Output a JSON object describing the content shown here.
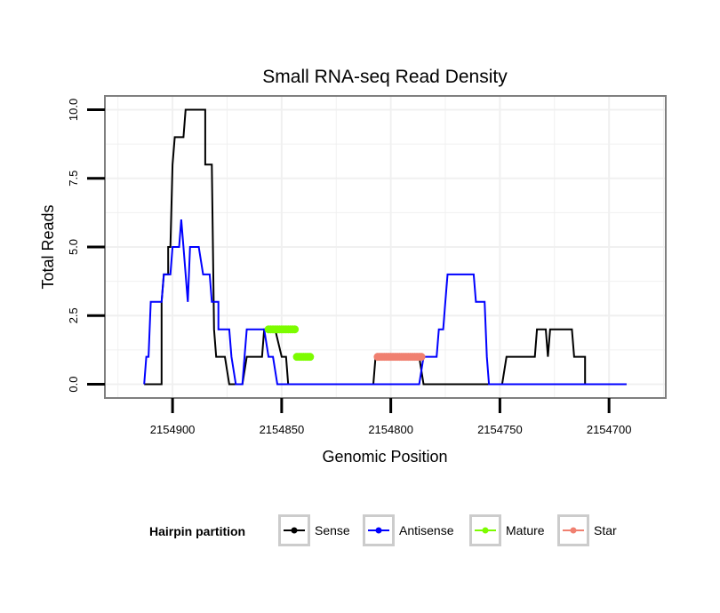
{
  "chart_data": {
    "type": "line",
    "title": "Small RNA-seq Read Density",
    "xlabel": "Genomic Position",
    "ylabel": "Total Reads",
    "x_reversed": true,
    "xlim": [
      2154931,
      2154674
    ],
    "ylim": [
      -0.5,
      10.5
    ],
    "x_ticks": [
      2154900,
      2154850,
      2154800,
      2154750,
      2154700
    ],
    "x_tick_labels": [
      "2154900",
      "2154850",
      "2154800",
      "2154750",
      "2154700"
    ],
    "y_ticks": [
      0,
      2.5,
      5,
      7.5,
      10
    ],
    "y_tick_labels": [
      "0.0",
      "2.5",
      "5.0",
      "7.5",
      "10.0"
    ],
    "grid": true,
    "legend": {
      "title": "Hairpin partition",
      "position": "bottom",
      "entries": [
        {
          "label": "Sense",
          "color": "#000000"
        },
        {
          "label": "Antisense",
          "color": "#0000ff"
        },
        {
          "label": "Mature",
          "color": "#7cfc00"
        },
        {
          "label": "Star",
          "color": "#f08070"
        }
      ]
    },
    "series": [
      {
        "name": "Sense",
        "color": "#000000",
        "points": [
          [
            2154913,
            0
          ],
          [
            2154905,
            0
          ],
          [
            2154905,
            3
          ],
          [
            2154904,
            4
          ],
          [
            2154902,
            4
          ],
          [
            2154902,
            5
          ],
          [
            2154901,
            5
          ],
          [
            2154900,
            8
          ],
          [
            2154899,
            9
          ],
          [
            2154895,
            9
          ],
          [
            2154894,
            10
          ],
          [
            2154885,
            10
          ],
          [
            2154885,
            8
          ],
          [
            2154882,
            8
          ],
          [
            2154881,
            2
          ],
          [
            2154880,
            1
          ],
          [
            2154876,
            1
          ],
          [
            2154874,
            0
          ],
          [
            2154868,
            0
          ],
          [
            2154866,
            1
          ],
          [
            2154859,
            1
          ],
          [
            2154858,
            2
          ],
          [
            2154853,
            2
          ],
          [
            2154850,
            1
          ],
          [
            2154848,
            1
          ],
          [
            2154847,
            0
          ],
          [
            2154808,
            0
          ],
          [
            2154807,
            1
          ],
          [
            2154787,
            1
          ],
          [
            2154785,
            0
          ],
          [
            2154749,
            0
          ],
          [
            2154747,
            1
          ],
          [
            2154734,
            1
          ],
          [
            2154733,
            2
          ],
          [
            2154729,
            2
          ],
          [
            2154728,
            1
          ],
          [
            2154727,
            2
          ],
          [
            2154717,
            2
          ],
          [
            2154716,
            1
          ],
          [
            2154711,
            1
          ],
          [
            2154711,
            0
          ],
          [
            2154692,
            0
          ]
        ]
      },
      {
        "name": "Antisense",
        "color": "#0000ff",
        "points": [
          [
            2154913,
            0
          ],
          [
            2154912,
            1
          ],
          [
            2154911,
            1
          ],
          [
            2154910,
            3
          ],
          [
            2154905,
            3
          ],
          [
            2154904,
            4
          ],
          [
            2154901,
            4
          ],
          [
            2154900,
            5
          ],
          [
            2154897,
            5
          ],
          [
            2154896,
            6
          ],
          [
            2154895,
            5
          ],
          [
            2154893,
            3
          ],
          [
            2154892,
            5
          ],
          [
            2154888,
            5
          ],
          [
            2154886,
            4
          ],
          [
            2154883,
            4
          ],
          [
            2154882,
            3
          ],
          [
            2154879,
            3
          ],
          [
            2154879,
            2
          ],
          [
            2154874,
            2
          ],
          [
            2154873,
            1
          ],
          [
            2154871,
            0
          ],
          [
            2154868,
            0
          ],
          [
            2154867,
            1
          ],
          [
            2154866,
            2
          ],
          [
            2154858,
            2
          ],
          [
            2154856,
            1
          ],
          [
            2154854,
            1
          ],
          [
            2154852,
            0
          ],
          [
            2154787,
            0
          ],
          [
            2154785,
            1
          ],
          [
            2154779,
            1
          ],
          [
            2154778,
            2
          ],
          [
            2154776,
            2
          ],
          [
            2154775,
            3
          ],
          [
            2154774,
            4
          ],
          [
            2154762,
            4
          ],
          [
            2154761,
            3
          ],
          [
            2154757,
            3
          ],
          [
            2154756,
            1
          ],
          [
            2154755,
            0
          ],
          [
            2154692,
            0
          ]
        ]
      },
      {
        "name": "Mature",
        "color": "#7cfc00",
        "points": [
          [
            2154856,
            2
          ],
          [
            2154855,
            2
          ],
          [
            2154854,
            2
          ],
          [
            2154853,
            2
          ],
          [
            2154852,
            2
          ],
          [
            2154851,
            2
          ],
          [
            2154850,
            2
          ],
          [
            2154849,
            2
          ],
          [
            2154848,
            2
          ],
          [
            2154847,
            2
          ],
          [
            2154846,
            2
          ],
          [
            2154845,
            2
          ],
          [
            2154844,
            2
          ],
          [
            2154843,
            1
          ],
          [
            2154842,
            1
          ],
          [
            2154841,
            1
          ],
          [
            2154840,
            1
          ],
          [
            2154839,
            1
          ],
          [
            2154838,
            1
          ],
          [
            2154837,
            1
          ]
        ]
      },
      {
        "name": "Star",
        "color": "#f08070",
        "points": [
          [
            2154806,
            1
          ],
          [
            2154805,
            1
          ],
          [
            2154804,
            1
          ],
          [
            2154803,
            1
          ],
          [
            2154802,
            1
          ],
          [
            2154801,
            1
          ],
          [
            2154800,
            1
          ],
          [
            2154799,
            1
          ],
          [
            2154798,
            1
          ],
          [
            2154797,
            1
          ],
          [
            2154796,
            1
          ],
          [
            2154795,
            1
          ],
          [
            2154794,
            1
          ],
          [
            2154793,
            1
          ],
          [
            2154792,
            1
          ],
          [
            2154791,
            1
          ],
          [
            2154790,
            1
          ],
          [
            2154789,
            1
          ],
          [
            2154788,
            1
          ],
          [
            2154787,
            1
          ],
          [
            2154786,
            1
          ]
        ]
      }
    ]
  }
}
